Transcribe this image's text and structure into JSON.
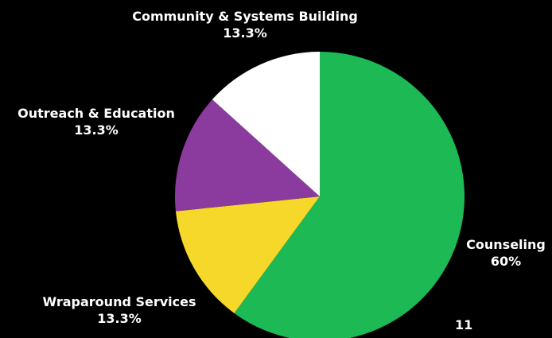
{
  "chart_data": {
    "type": "pie",
    "title": "",
    "slices": [
      {
        "label": "Counseling",
        "value_label": "60%",
        "value": 60,
        "color": "#1db954"
      },
      {
        "label": "Wraparound Services",
        "value_label": "13.3%",
        "value": 13.3,
        "color": "#f5d82a"
      },
      {
        "label": "Outreach & Education",
        "value_label": "13.3%",
        "value": 13.3,
        "color": "#8b3a9e"
      },
      {
        "label": "Community & Systems Building",
        "value_label": "13.3%",
        "value": 13.3,
        "color": "#ffffff"
      }
    ],
    "start": "12 o'clock",
    "direction": "clockwise",
    "legend": "none"
  },
  "page": {
    "number": "11"
  }
}
